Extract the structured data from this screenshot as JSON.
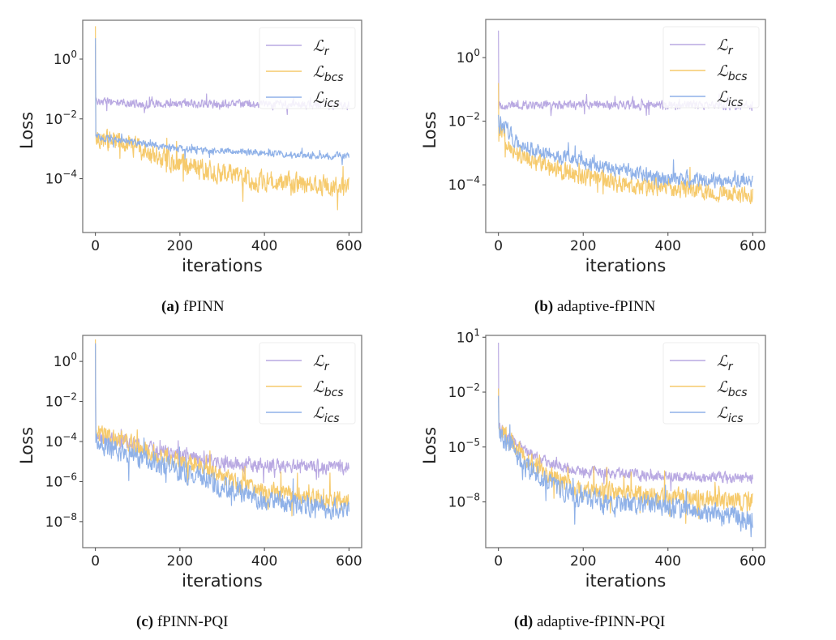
{
  "figure": {
    "captions": [
      {
        "tag": "(a)",
        "text": " fPINN"
      },
      {
        "tag": "(b)",
        "text": " adaptive-fPINN"
      },
      {
        "tag": "(c)",
        "text": " fPINN-PQI"
      },
      {
        "tag": "(d)",
        "text": " adaptive-fPINN-PQI"
      }
    ]
  },
  "colors": {
    "L_r": "#b9a9e2",
    "L_bcs": "#f6ca6c",
    "L_ics": "#8fb1e8",
    "axes": "#7a7a7a",
    "legend_frame": "#eeeeee"
  },
  "chart_data": [
    {
      "type": "line",
      "title": "(a) fPINN",
      "xlabel": "iterations",
      "ylabel": "Loss",
      "yscale": "log",
      "xlim": [
        -30,
        630
      ],
      "ylim_log10": [
        -5.8,
        1.3
      ],
      "xticks": [
        0,
        200,
        400,
        600
      ],
      "xtick_labels": [
        "0",
        "200",
        "400",
        "600"
      ],
      "yticks_log10": [
        0,
        -2,
        -4
      ],
      "ytick_labels": [
        {
          "base": "10",
          "exp": "0"
        },
        {
          "base": "10",
          "exp": "−2"
        },
        {
          "base": "10",
          "exp": "−4"
        }
      ],
      "legend": {
        "placement": "top-right",
        "entries": [
          {
            "main": "ℒ",
            "sub": "r"
          },
          {
            "main": "ℒ",
            "sub": "bcs"
          },
          {
            "main": "ℒ",
            "sub": "ics"
          }
        ]
      },
      "series": [
        {
          "name": "L_r",
          "start_log10": 0.5,
          "trend_log10": [
            [
              5,
              -1.4
            ],
            [
              100,
              -1.5
            ],
            [
              300,
              -1.5
            ],
            [
              600,
              -1.55
            ]
          ],
          "noise": 0.12
        },
        {
          "name": "L_bcs",
          "start_log10": 1.1,
          "trend_log10": [
            [
              5,
              -2.6
            ],
            [
              100,
              -3.0
            ],
            [
              200,
              -3.5
            ],
            [
              400,
              -4.1
            ],
            [
              600,
              -4.3
            ]
          ],
          "noise": 0.3
        },
        {
          "name": "L_ics",
          "start_log10": 0.7,
          "trend_log10": [
            [
              5,
              -2.6
            ],
            [
              100,
              -2.8
            ],
            [
              200,
              -3.0
            ],
            [
              400,
              -3.15
            ],
            [
              600,
              -3.25
            ]
          ],
          "noise": 0.1
        }
      ]
    },
    {
      "type": "line",
      "title": "(b) adaptive-fPINN",
      "xlabel": "iterations",
      "ylabel": "Loss",
      "yscale": "log",
      "xlim": [
        -30,
        630
      ],
      "ylim_log10": [
        -5.5,
        1.2
      ],
      "xticks": [
        0,
        200,
        400,
        600
      ],
      "xtick_labels": [
        "0",
        "200",
        "400",
        "600"
      ],
      "yticks_log10": [
        0,
        -2,
        -4
      ],
      "ytick_labels": [
        {
          "base": "10",
          "exp": "0"
        },
        {
          "base": "10",
          "exp": "−2"
        },
        {
          "base": "10",
          "exp": "−4"
        }
      ],
      "legend": {
        "placement": "top-right",
        "entries": [
          {
            "main": "ℒ",
            "sub": "r"
          },
          {
            "main": "ℒ",
            "sub": "bcs"
          },
          {
            "main": "ℒ",
            "sub": "ics"
          }
        ]
      },
      "series": [
        {
          "name": "L_r",
          "start_log10": 0.85,
          "trend_log10": [
            [
              5,
              -1.5
            ],
            [
              300,
              -1.5
            ],
            [
              600,
              -1.5
            ]
          ],
          "noise": 0.12
        },
        {
          "name": "L_bcs",
          "start_log10": -0.8,
          "trend_log10": [
            [
              5,
              -2.4
            ],
            [
              50,
              -3.1
            ],
            [
              150,
              -3.6
            ],
            [
              300,
              -4.0
            ],
            [
              600,
              -4.3
            ]
          ],
          "noise": 0.25
        },
        {
          "name": "L_ics",
          "start_log10": -1.8,
          "trend_log10": [
            [
              5,
              -2.0
            ],
            [
              50,
              -2.8
            ],
            [
              200,
              -3.3
            ],
            [
              400,
              -3.8
            ],
            [
              600,
              -3.9
            ]
          ],
          "noise": 0.2
        }
      ]
    },
    {
      "type": "line",
      "title": "(c) fPINN-PQI",
      "xlabel": "iterations",
      "ylabel": "Loss",
      "yscale": "log",
      "xlim": [
        -30,
        630
      ],
      "ylim_log10": [
        -9.3,
        1.3
      ],
      "xticks": [
        0,
        200,
        400,
        600
      ],
      "xtick_labels": [
        "0",
        "200",
        "400",
        "600"
      ],
      "yticks_log10": [
        0,
        -2,
        -4,
        -6,
        -8
      ],
      "ytick_labels": [
        {
          "base": "10",
          "exp": "0"
        },
        {
          "base": "10",
          "exp": "−2"
        },
        {
          "base": "10",
          "exp": "−4"
        },
        {
          "base": "10",
          "exp": "−6"
        },
        {
          "base": "10",
          "exp": "−8"
        }
      ],
      "legend": {
        "placement": "top-right",
        "entries": [
          {
            "main": "ℒ",
            "sub": "r"
          },
          {
            "main": "ℒ",
            "sub": "bcs"
          },
          {
            "main": "ℒ",
            "sub": "ics"
          }
        ]
      },
      "series": [
        {
          "name": "L_r",
          "start_log10": 0.8,
          "trend_log10": [
            [
              5,
              -3.8
            ],
            [
              100,
              -4.2
            ],
            [
              250,
              -4.9
            ],
            [
              350,
              -5.2
            ],
            [
              600,
              -5.25
            ]
          ],
          "noise": 0.3
        },
        {
          "name": "L_bcs",
          "start_log10": 1.1,
          "trend_log10": [
            [
              5,
              -3.5
            ],
            [
              100,
              -4.3
            ],
            [
              250,
              -5.3
            ],
            [
              400,
              -6.5
            ],
            [
              600,
              -7.0
            ]
          ],
          "noise": 0.4
        },
        {
          "name": "L_ics",
          "start_log10": 0.9,
          "trend_log10": [
            [
              5,
              -4.0
            ],
            [
              100,
              -4.8
            ],
            [
              250,
              -5.8
            ],
            [
              400,
              -7.0
            ],
            [
              600,
              -7.4
            ]
          ],
          "noise": 0.45
        }
      ]
    },
    {
      "type": "line",
      "title": "(d) adaptive-fPINN-PQI",
      "xlabel": "iterations",
      "ylabel": "Loss",
      "yscale": "log",
      "xlim": [
        -30,
        630
      ],
      "ylim_log10": [
        -10.5,
        1.1
      ],
      "xticks": [
        0,
        200,
        400,
        600
      ],
      "xtick_labels": [
        "0",
        "200",
        "400",
        "600"
      ],
      "yticks_log10": [
        1,
        -2,
        -5,
        -8
      ],
      "ytick_labels": [
        {
          "base": "10",
          "exp": "1"
        },
        {
          "base": "10",
          "exp": "−2"
        },
        {
          "base": "10",
          "exp": "−5"
        },
        {
          "base": "10",
          "exp": "−8"
        }
      ],
      "legend": {
        "placement": "top-right",
        "entries": [
          {
            "main": "ℒ",
            "sub": "r"
          },
          {
            "main": "ℒ",
            "sub": "bcs"
          },
          {
            "main": "ℒ",
            "sub": "ics"
          }
        ]
      },
      "series": [
        {
          "name": "L_r",
          "start_log10": 0.7,
          "trend_log10": [
            [
              5,
              -4.0
            ],
            [
              50,
              -5.0
            ],
            [
              100,
              -5.7
            ],
            [
              180,
              -6.3
            ],
            [
              400,
              -6.6
            ],
            [
              600,
              -6.7
            ]
          ],
          "noise": 0.25
        },
        {
          "name": "L_bcs",
          "start_log10": -1.8,
          "trend_log10": [
            [
              5,
              -4.0
            ],
            [
              60,
              -5.6
            ],
            [
              180,
              -7.3
            ],
            [
              400,
              -7.7
            ],
            [
              600,
              -8.0
            ]
          ],
          "noise": 0.45
        },
        {
          "name": "L_ics",
          "start_log10": -2.2,
          "trend_log10": [
            [
              5,
              -4.3
            ],
            [
              60,
              -6.0
            ],
            [
              180,
              -7.7
            ],
            [
              400,
              -8.3
            ],
            [
              600,
              -8.9
            ]
          ],
          "noise": 0.5
        }
      ]
    }
  ]
}
